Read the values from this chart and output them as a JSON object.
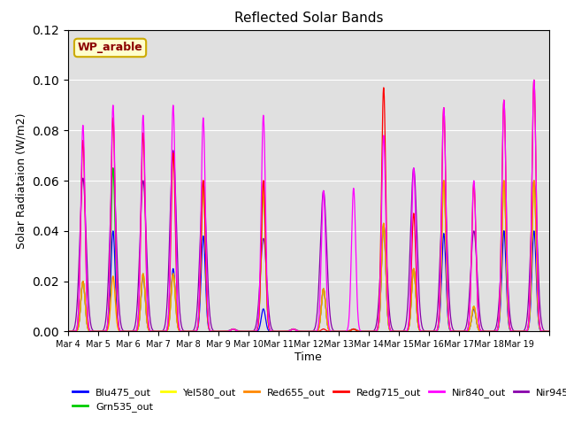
{
  "title": "Reflected Solar Bands",
  "ylabel": "Solar Radiataion (W/m2)",
  "xlabel": "Time",
  "annotation": "WP_arable",
  "ylim": [
    0,
    0.12
  ],
  "bg_color": "#e0e0e0",
  "tick_labels": [
    "Mar 4",
    "Mar 5",
    "Mar 6",
    "Mar 7",
    "Mar 8",
    "Mar 9",
    "Mar 10",
    "Mar 11",
    "Mar 12",
    "Mar 13",
    "Mar 14",
    "Mar 15",
    "Mar 16",
    "Mar 17",
    "Mar 18",
    "Mar 19"
  ],
  "n_days": 16,
  "points_per_day": 288,
  "sigma": 0.07,
  "nir840_peaks": [
    0.082,
    0.09,
    0.086,
    0.09,
    0.085,
    0.001,
    0.086,
    0.001,
    0.056,
    0.057,
    0.078,
    0.065,
    0.089,
    0.06,
    0.092,
    0.1
  ],
  "redg715_peaks": [
    0.076,
    0.085,
    0.079,
    0.071,
    0.06,
    0.001,
    0.06,
    0.001,
    0.001,
    0.001,
    0.097,
    0.047,
    0.089,
    0.059,
    0.092,
    0.1
  ],
  "nir945_peaks": [
    0.061,
    0.065,
    0.06,
    0.072,
    0.059,
    0.001,
    0.037,
    0.001,
    0.056,
    0.001,
    0.042,
    0.065,
    0.06,
    0.04,
    0.04,
    0.06
  ],
  "blu475_peaks": [
    0.02,
    0.04,
    0.022,
    0.025,
    0.038,
    0.001,
    0.009,
    0.001,
    0.017,
    0.001,
    0.042,
    0.025,
    0.039,
    0.009,
    0.04,
    0.04
  ],
  "grn535_peaks": [
    0.02,
    0.065,
    0.023,
    0.023,
    0.06,
    0.001,
    0.056,
    0.001,
    0.017,
    0.001,
    0.043,
    0.025,
    0.06,
    0.01,
    0.06,
    0.06
  ],
  "yel580_peaks": [
    0.02,
    0.022,
    0.023,
    0.023,
    0.06,
    0.001,
    0.056,
    0.001,
    0.017,
    0.001,
    0.043,
    0.025,
    0.06,
    0.01,
    0.06,
    0.06
  ],
  "red655_peaks": [
    0.02,
    0.022,
    0.023,
    0.023,
    0.06,
    0.001,
    0.06,
    0.001,
    0.017,
    0.001,
    0.043,
    0.025,
    0.06,
    0.01,
    0.06,
    0.06
  ],
  "band_colors": {
    "Blu475_out": "#0000ff",
    "Grn535_out": "#00cc00",
    "Yel580_out": "#ffff00",
    "Red655_out": "#ff8800",
    "Redg715_out": "#ff0000",
    "Nir840_out": "#ff00ff",
    "Nir945_out": "#8800aa"
  },
  "legend_order": [
    "Blu475_out",
    "Grn535_out",
    "Yel580_out",
    "Red655_out",
    "Redg715_out",
    "Nir840_out",
    "Nir945_out"
  ]
}
